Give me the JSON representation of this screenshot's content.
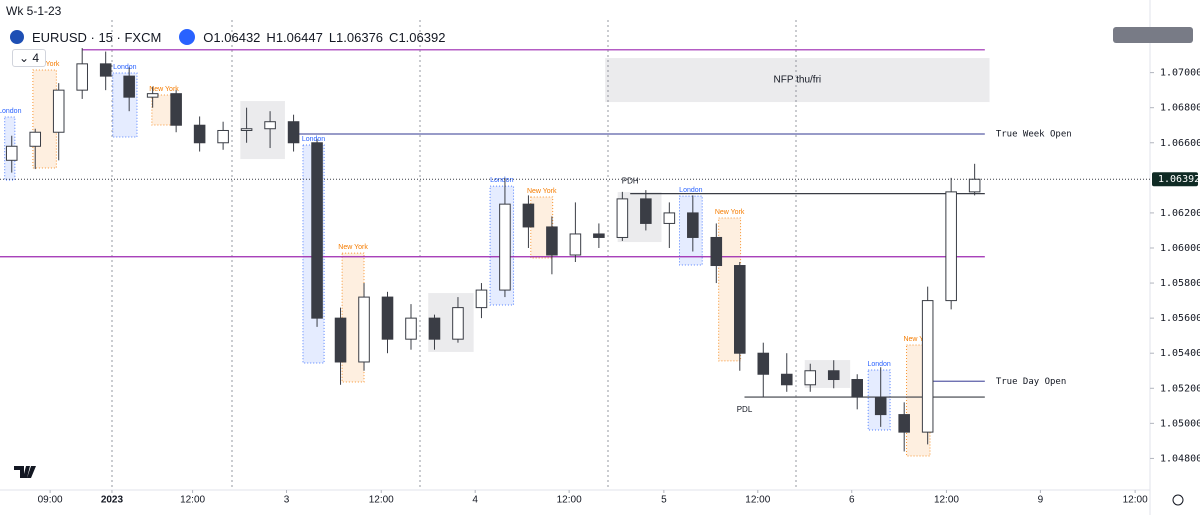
{
  "chart_data": {
    "type": "candlestick",
    "title": "Wk 5-1-23",
    "symbol": "EURUSD · 15 · FXCM",
    "indicators": 4,
    "header_ohlc": [
      {
        "label": "O",
        "value": 1.06432
      },
      {
        "label": "H",
        "value": 1.06447
      },
      {
        "label": "L",
        "value": 1.06376
      },
      {
        "label": "C",
        "value": 1.06392
      }
    ],
    "color": "#3a3d45",
    "x": [
      1.5,
      4.5,
      7.5,
      10.5,
      13.5,
      16.5,
      19.5,
      22.5,
      25.5,
      28.5,
      31.5,
      34.5,
      37.5,
      40.5,
      43.5,
      46.5,
      49.5,
      52.5,
      55.5,
      58.5,
      61.5,
      64.5,
      67.5,
      70.5,
      73.5,
      76.5,
      79.5,
      82.5,
      85.5,
      88.5,
      91.5,
      94.5,
      97.5,
      100.5,
      103.5,
      106.5,
      109.5,
      112.5,
      115.5,
      118.5,
      121.5,
      124.5
    ],
    "open": [
      1.065,
      1.0658,
      1.0666,
      1.069,
      1.0705,
      1.0698,
      1.0686,
      1.0688,
      1.067,
      1.066,
      1.0667,
      1.0668,
      1.0672,
      1.066,
      1.056,
      1.0535,
      1.0572,
      1.0548,
      1.056,
      1.0548,
      1.0566,
      1.0576,
      1.0625,
      1.0612,
      1.0596,
      1.0608,
      1.0606,
      1.0628,
      1.0614,
      1.062,
      1.0606,
      1.059,
      1.054,
      1.0528,
      1.0522,
      1.053,
      1.0525,
      1.0515,
      1.0505,
      1.0495,
      1.057,
      1.0632
    ],
    "high": [
      1.0664,
      1.0668,
      1.0694,
      1.0714,
      1.0712,
      1.0703,
      1.0692,
      1.069,
      1.0675,
      1.0672,
      1.068,
      1.0678,
      1.0676,
      1.0662,
      1.0566,
      1.058,
      1.0575,
      1.0568,
      1.0562,
      1.0572,
      1.058,
      1.064,
      1.063,
      1.0618,
      1.0626,
      1.0614,
      1.0632,
      1.0633,
      1.0626,
      1.063,
      1.0614,
      1.0592,
      1.0546,
      1.054,
      1.0534,
      1.0536,
      1.0528,
      1.0532,
      1.0512,
      1.0578,
      1.064,
      1.0648
    ],
    "low": [
      1.0643,
      1.0645,
      1.065,
      1.0685,
      1.069,
      1.0678,
      1.068,
      1.0666,
      1.0655,
      1.0656,
      1.066,
      1.0657,
      1.0655,
      1.0555,
      1.0522,
      1.053,
      1.054,
      1.0542,
      1.0542,
      1.0546,
      1.056,
      1.0572,
      1.06,
      1.0585,
      1.0592,
      1.06,
      1.0604,
      1.061,
      1.06,
      1.0598,
      1.058,
      1.053,
      1.0515,
      1.0518,
      1.0518,
      1.052,
      1.0508,
      1.0498,
      1.0484,
      1.0488,
      1.0565,
      1.063
    ],
    "close": [
      1.0658,
      1.0666,
      1.069,
      1.0705,
      1.0698,
      1.0686,
      1.0688,
      1.067,
      1.066,
      1.0667,
      1.0668,
      1.0672,
      1.066,
      1.056,
      1.0535,
      1.0572,
      1.0548,
      1.056,
      1.0548,
      1.0566,
      1.0576,
      1.0625,
      1.0612,
      1.0596,
      1.0608,
      1.0606,
      1.0628,
      1.0614,
      1.062,
      1.0606,
      1.059,
      1.054,
      1.0528,
      1.0522,
      1.053,
      1.0525,
      1.0515,
      1.0505,
      1.0495,
      1.057,
      1.0632,
      1.06392
    ],
    "xlim": [
      0,
      146.9
    ],
    "xticks": [
      {
        "value": 6.4,
        "label": "09:00"
      },
      {
        "value": 14.3,
        "label": "2023"
      },
      {
        "value": 24.6,
        "label": "12:00"
      },
      {
        "value": 36.6,
        "label": "3"
      },
      {
        "value": 48.7,
        "label": "12:00"
      },
      {
        "value": 60.7,
        "label": "4"
      },
      {
        "value": 72.7,
        "label": "12:00"
      },
      {
        "value": 84.8,
        "label": "5"
      },
      {
        "value": 96.8,
        "label": "12:00"
      },
      {
        "value": 108.8,
        "label": "6"
      },
      {
        "value": 120.9,
        "label": "12:00"
      },
      {
        "value": 132.9,
        "label": "9"
      },
      {
        "value": 145.0,
        "label": "12:00"
      }
    ],
    "ylim": [
      1.0462,
      1.073
    ],
    "yticks": [
      {
        "value": 1.048,
        "label": "1.04800"
      },
      {
        "value": 1.05,
        "label": "1.05000"
      },
      {
        "value": 1.052,
        "label": "1.05200"
      },
      {
        "value": 1.054,
        "label": "1.05400"
      },
      {
        "value": 1.056,
        "label": "1.05600"
      },
      {
        "value": 1.058,
        "label": "1.05800"
      },
      {
        "value": 1.06,
        "label": "1.06000"
      },
      {
        "value": 1.062,
        "label": "1.06200"
      },
      {
        "value": 1.066,
        "label": "1.06600"
      },
      {
        "value": 1.068,
        "label": "1.06800"
      },
      {
        "value": 1.07,
        "label": "1.07000"
      }
    ],
    "levels": [
      {
        "value": 1.0713,
        "from": 10.5,
        "to": 125.8,
        "color": "#9c27b0"
      },
      {
        "value": 1.0595,
        "from": 0,
        "to": 125.8,
        "color": "#9c27b0"
      },
      {
        "label": "True Week Open",
        "value": 1.0665,
        "from": 37.5,
        "to": 125.8,
        "color": "#5b5fa8"
      },
      {
        "label": "True Day Open",
        "value": 1.0524,
        "from": 118.8,
        "to": 125.8,
        "color": "#5b5fa8"
      },
      {
        "label": "PDH",
        "value": 1.0631,
        "from": 80.5,
        "to": 125.8,
        "color": "#3a3d45"
      },
      {
        "label": "PDL",
        "value": 1.0515,
        "from": 95.1,
        "to": 125.8,
        "color": "#3a3d45"
      }
    ],
    "sessions": [
      {
        "label": "London",
        "x": [
          0.6,
          1.9
        ],
        "y": [
          1.06388,
          1.06747
        ],
        "color": "#2962ff"
      },
      {
        "label": "New York",
        "x": [
          4.2,
          7.2
        ],
        "y": [
          1.06456,
          1.07015
        ],
        "color": "#f57c00"
      },
      {
        "label": "London",
        "x": [
          14.4,
          17.5
        ],
        "y": [
          1.06633,
          1.06998
        ],
        "color": "#2962ff"
      },
      {
        "label": "New York",
        "x": [
          19.4,
          22.5
        ],
        "y": [
          1.06701,
          1.06872
        ],
        "color": "#f57c00"
      },
      {
        "x": [
          30.7,
          36.4
        ],
        "y": [
          1.06507,
          1.06838
        ],
        "color": "#787b86"
      },
      {
        "label": "London",
        "x": [
          38.7,
          41.4
        ],
        "y": [
          1.05344,
          1.06587
        ],
        "color": "#2962ff"
      },
      {
        "label": "New York",
        "x": [
          43.7,
          46.5
        ],
        "y": [
          1.05236,
          1.05971
        ],
        "color": "#f57c00"
      },
      {
        "x": [
          54.7,
          60.5
        ],
        "y": [
          1.05407,
          1.05743
        ],
        "color": "#787b86"
      },
      {
        "label": "London",
        "x": [
          62.6,
          65.6
        ],
        "y": [
          1.05675,
          1.06353
        ],
        "color": "#2962ff"
      },
      {
        "label": "New York",
        "x": [
          67.8,
          70.6
        ],
        "y": [
          1.05943,
          1.06291
        ],
        "color": "#f57c00"
      },
      {
        "x": [
          78.9,
          84.5
        ],
        "y": [
          1.06034,
          1.06319
        ],
        "color": "#787b86"
      },
      {
        "label": "London",
        "x": [
          86.8,
          89.7
        ],
        "y": [
          1.05903,
          1.06296
        ],
        "color": "#2962ff"
      },
      {
        "label": "New York",
        "x": [
          91.8,
          94.6
        ],
        "y": [
          1.05356,
          1.06171
        ],
        "color": "#f57c00"
      },
      {
        "x": [
          102.8,
          108.6
        ],
        "y": [
          1.05202,
          1.05361
        ],
        "color": "#787b86"
      },
      {
        "label": "London",
        "x": [
          110.9,
          113.7
        ],
        "y": [
          1.04962,
          1.05304
        ],
        "color": "#2962ff"
      },
      {
        "label": "New York",
        "x": [
          115.8,
          118.8
        ],
        "y": [
          1.04814,
          1.05447
        ],
        "color": "#f57c00"
      },
      {
        "label": "NFP thu/fri",
        "x": [
          77.3,
          126.4
        ],
        "y": [
          1.06832,
          1.07083
        ],
        "color": "#787b86"
      }
    ]
  }
}
